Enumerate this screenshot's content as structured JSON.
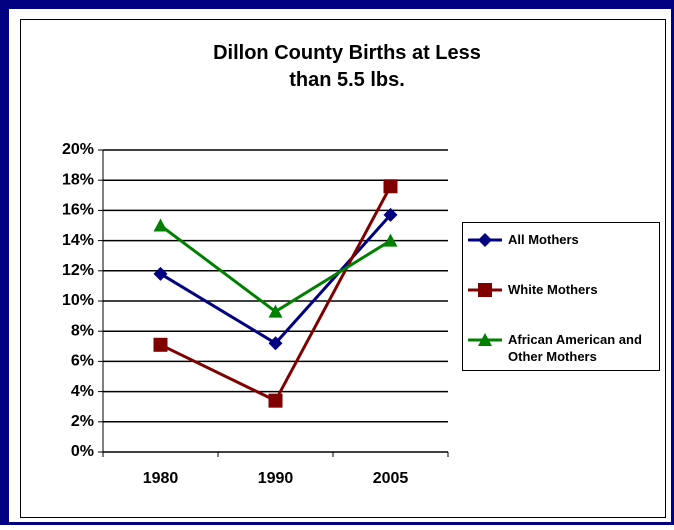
{
  "chart_data": {
    "type": "line",
    "title": "Dillon County Births at Less than 5.5 lbs.",
    "categories": [
      "1980",
      "1990",
      "2005"
    ],
    "series": [
      {
        "name": "All Mothers",
        "color": "#000080",
        "marker": "diamond",
        "values": [
          11.8,
          7.2,
          15.7
        ]
      },
      {
        "name": "White Mothers",
        "color": "#800000",
        "marker": "square",
        "values": [
          7.1,
          3.4,
          17.6
        ]
      },
      {
        "name": "African American and Other Mothers",
        "color": "#008000",
        "marker": "triangle",
        "values": [
          15.0,
          9.3,
          14.0
        ]
      }
    ],
    "ylim": [
      0,
      20
    ],
    "yticks": [
      {
        "value": 0,
        "label": "0%"
      },
      {
        "value": 2,
        "label": "2%"
      },
      {
        "value": 4,
        "label": "4%"
      },
      {
        "value": 6,
        "label": "6%"
      },
      {
        "value": 8,
        "label": "8%"
      },
      {
        "value": 10,
        "label": "10%"
      },
      {
        "value": 12,
        "label": "12%"
      },
      {
        "value": 14,
        "label": "14%"
      },
      {
        "value": 16,
        "label": "16%"
      },
      {
        "value": 18,
        "label": "18%"
      },
      {
        "value": 20,
        "label": "20%"
      }
    ],
    "grid": true,
    "legend": "right"
  }
}
